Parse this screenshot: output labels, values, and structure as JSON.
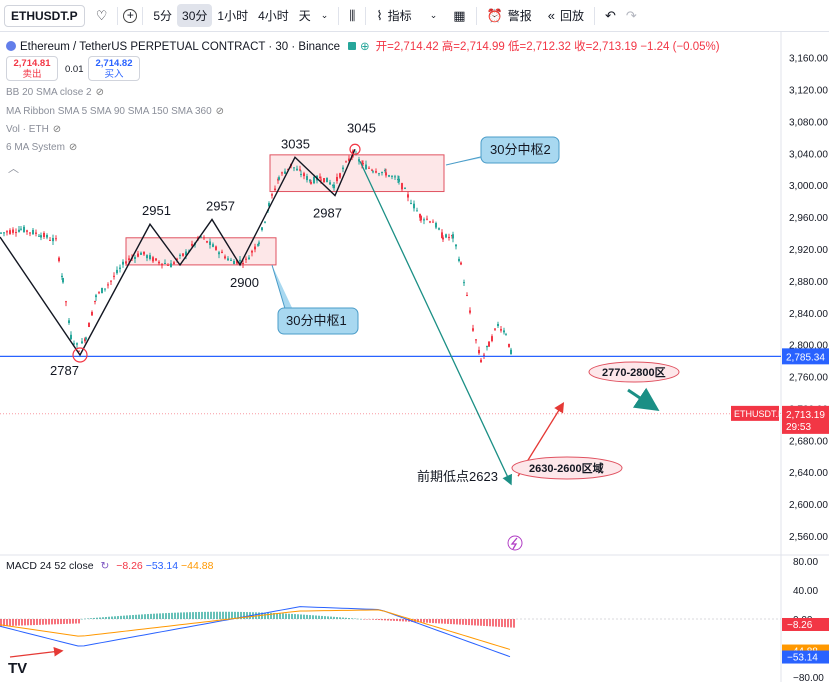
{
  "toolbar": {
    "symbol": "ETHUSDT.P",
    "intervals": [
      "5分",
      "30分",
      "1小时",
      "4小时",
      "天"
    ],
    "active_interval": "30分",
    "indicators_label": "指标",
    "alert_label": "警报",
    "replay_label": "回放",
    "icons": [
      "heart-icon",
      "plus-icon",
      "chevron-down-icon",
      "candle-style-icon",
      "indicators-icon",
      "layout-icon",
      "alert-icon",
      "replay-icon",
      "undo-icon",
      "redo-icon"
    ]
  },
  "legend": {
    "title": "Ethereum / TetherUS PERPETUAL CONTRACT · 30 · Binance",
    "ohlc": "开=2,714.42 高=2,714.99 低=2,712.32 收=2,713.19 −1.24 (−0.05%)",
    "sell_price": "2,714.81",
    "sell_label": "卖出",
    "spread": "0.01",
    "buy_price": "2,714.82",
    "buy_label": "买入"
  },
  "indicators": [
    "BB 20 SMA close 2",
    "MA Ribbon SMA 5 SMA 90 SMA 150 SMA 360",
    "Vol · ETH",
    "6 MA System"
  ],
  "macd_legend": {
    "name": "MACD 24 52 close",
    "v1": "−8.26",
    "v2": "−53.14",
    "v3": "−44.88"
  },
  "chart_data": {
    "type": "candlestick",
    "symbol": "ETHUSDT.P",
    "interval": "30",
    "y_ticks": [
      2560,
      2600,
      2640,
      2680,
      2720,
      2760,
      2800,
      2840,
      2880,
      2920,
      2960,
      3000,
      3040,
      3080,
      3120,
      3160
    ],
    "ylim": [
      2545,
      3172
    ],
    "price_path": [
      [
        0,
        2940
      ],
      [
        20,
        2945
      ],
      [
        40,
        2938
      ],
      [
        55,
        2930
      ],
      [
        62,
        2880
      ],
      [
        70,
        2810
      ],
      [
        78,
        2795
      ],
      [
        85,
        2810
      ],
      [
        95,
        2860
      ],
      [
        110,
        2880
      ],
      [
        125,
        2905
      ],
      [
        140,
        2915
      ],
      [
        155,
        2905
      ],
      [
        170,
        2900
      ],
      [
        185,
        2915
      ],
      [
        200,
        2935
      ],
      [
        215,
        2920
      ],
      [
        230,
        2905
      ],
      [
        245,
        2905
      ],
      [
        258,
        2930
      ],
      [
        268,
        2975
      ],
      [
        278,
        3010
      ],
      [
        290,
        3025
      ],
      [
        300,
        3015
      ],
      [
        310,
        3005
      ],
      [
        320,
        3010
      ],
      [
        333,
        3000
      ],
      [
        342,
        3020
      ],
      [
        352,
        3040
      ],
      [
        362,
        3025
      ],
      [
        372,
        3020
      ],
      [
        385,
        3015
      ],
      [
        398,
        3005
      ],
      [
        410,
        2980
      ],
      [
        420,
        2960
      ],
      [
        432,
        2955
      ],
      [
        442,
        2935
      ],
      [
        452,
        2935
      ],
      [
        460,
        2900
      ],
      [
        466,
        2860
      ],
      [
        472,
        2820
      ],
      [
        480,
        2780
      ],
      [
        488,
        2800
      ],
      [
        497,
        2825
      ],
      [
        505,
        2815
      ],
      [
        510,
        2790
      ],
      [
        513,
        2713
      ]
    ],
    "zigzag": [
      [
        0,
        2935
      ],
      [
        80,
        2787
      ],
      [
        150,
        2951
      ],
      [
        180,
        2900
      ],
      [
        212,
        2957
      ],
      [
        240,
        2900
      ],
      [
        295,
        3035
      ],
      [
        335,
        2987
      ],
      [
        355,
        3045
      ]
    ],
    "pivot_labels": [
      {
        "text": "2787",
        "x": 80,
        "y": 2787
      },
      {
        "text": "2951",
        "x": 150,
        "y": 2951
      },
      {
        "text": "2957",
        "x": 212,
        "y": 2957
      },
      {
        "text": "2900",
        "x": 240,
        "y": 2900
      },
      {
        "text": "3035",
        "x": 295,
        "y": 3035
      },
      {
        "text": "3045",
        "x": 355,
        "y": 3045
      },
      {
        "text": "2987",
        "x": 335,
        "y": 2987
      }
    ],
    "zones": [
      {
        "label": "30分中枢1",
        "y_top": 2934,
        "y_bottom": 2900
      },
      {
        "label": "30分中枢2",
        "y_top": 3038,
        "y_bottom": 2992
      }
    ],
    "support_line": {
      "value": 2785.34,
      "label": "2,785.34"
    },
    "current_price": {
      "symbol": "ETHUSDT.P",
      "value": "2,713.19",
      "countdown": "29:53"
    },
    "annotations": [
      "2770-2800区",
      "2630-2600区域",
      "前期低点2623"
    ],
    "projection": {
      "from": 3045,
      "to": 2623
    },
    "macd": {
      "name": "MACD 24 52 close",
      "values": [
        -8.26,
        -53.14,
        -44.88
      ],
      "y_ticks": [
        80,
        40,
        0,
        -40,
        -80
      ],
      "ylim": [
        -80,
        80
      ]
    }
  }
}
